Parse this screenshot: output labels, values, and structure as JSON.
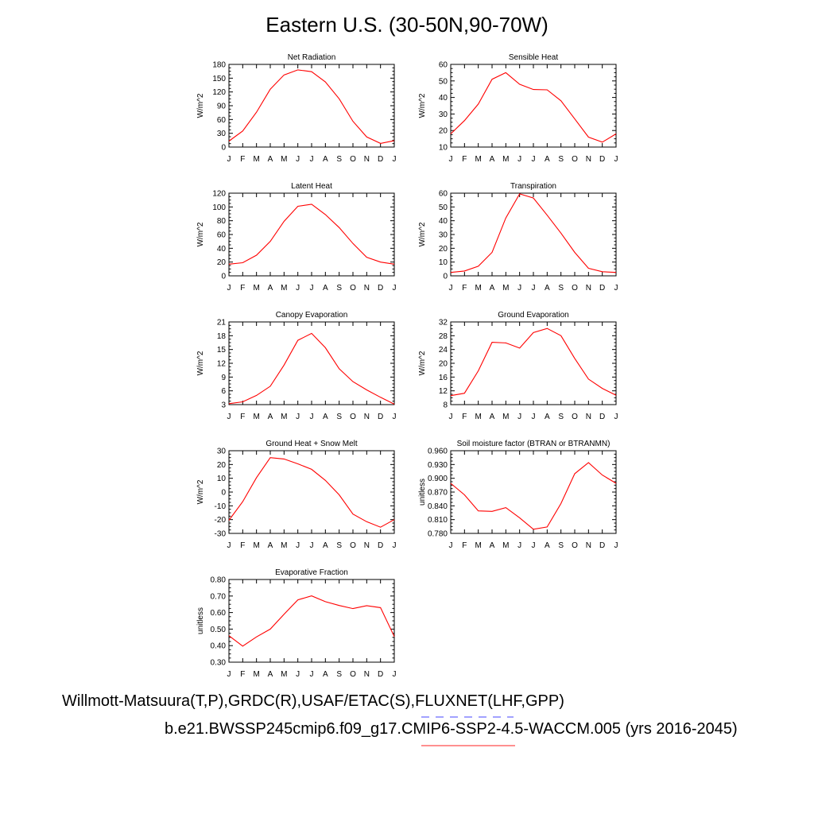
{
  "title": "Eastern U.S. (30-50N,90-70W)",
  "footer": {
    "obs_line": "Willmott-Matsuura(T,P),GRDC(R),USAF/ETAC(S),FLUXNET(LHF,GPP)",
    "model_line": "b.e21.BWSSP245cmip6.f09_g17.CMIP6-SSP2-4.5-WACCM.005 (yrs 2016-2045)",
    "obs_color": "#6b6bff",
    "model_color": "#ff6b6b"
  },
  "chart_data": [
    {
      "type": "line",
      "title": "Net Radiation",
      "ylabel": "W/m^2",
      "categories": [
        "J",
        "F",
        "M",
        "A",
        "M",
        "J",
        "J",
        "A",
        "S",
        "O",
        "N",
        "D",
        "J"
      ],
      "yticks": [
        "0",
        "30",
        "60",
        "90",
        "120",
        "150",
        "180"
      ],
      "ylim": [
        0,
        180
      ],
      "series": [
        {
          "color": "#ff0000",
          "values": [
            13,
            35,
            76,
            126,
            157,
            168,
            164,
            142,
            105,
            56,
            22,
            8,
            14
          ]
        }
      ]
    },
    {
      "type": "line",
      "title": "Sensible Heat",
      "ylabel": "W/m^2",
      "categories": [
        "J",
        "F",
        "M",
        "A",
        "M",
        "J",
        "J",
        "A",
        "S",
        "O",
        "N",
        "D",
        "J"
      ],
      "yticks": [
        "10",
        "20",
        "30",
        "40",
        "50",
        "60"
      ],
      "ylim": [
        10,
        60
      ],
      "series": [
        {
          "color": "#ff0000",
          "values": [
            18,
            26,
            36,
            51,
            55,
            48,
            44.8,
            44.6,
            38,
            27,
            16,
            13,
            18
          ]
        }
      ]
    },
    {
      "type": "line",
      "title": "Latent Heat",
      "ylabel": "W/m^2",
      "categories": [
        "J",
        "F",
        "M",
        "A",
        "M",
        "J",
        "J",
        "A",
        "S",
        "O",
        "N",
        "D",
        "J"
      ],
      "yticks": [
        "0",
        "20",
        "40",
        "60",
        "80",
        "100",
        "120"
      ],
      "ylim": [
        0,
        120
      ],
      "series": [
        {
          "color": "#ff0000",
          "values": [
            17,
            19,
            30,
            50,
            79,
            101,
            104,
            89,
            70,
            47,
            27,
            20,
            17
          ]
        }
      ]
    },
    {
      "type": "line",
      "title": "Transpiration",
      "ylabel": "W/m^2",
      "categories": [
        "J",
        "F",
        "M",
        "A",
        "M",
        "J",
        "J",
        "A",
        "S",
        "O",
        "N",
        "D",
        "J"
      ],
      "yticks": [
        "0",
        "10",
        "20",
        "30",
        "40",
        "50",
        "60"
      ],
      "ylim": [
        0,
        60
      ],
      "series": [
        {
          "color": "#ff0000",
          "values": [
            2.5,
            3.5,
            7,
            17,
            42,
            59.5,
            56.5,
            44,
            31,
            17,
            5.5,
            3,
            2.5
          ]
        }
      ]
    },
    {
      "type": "line",
      "title": "Canopy Evaporation",
      "ylabel": "W/m^2",
      "categories": [
        "J",
        "F",
        "M",
        "A",
        "M",
        "J",
        "J",
        "A",
        "S",
        "O",
        "N",
        "D",
        "J"
      ],
      "yticks": [
        "3",
        "6",
        "9",
        "12",
        "15",
        "18",
        "21"
      ],
      "ylim": [
        3,
        21
      ],
      "series": [
        {
          "color": "#ff0000",
          "values": [
            3.2,
            3.6,
            5,
            7,
            11.6,
            17,
            18.5,
            15.4,
            10.8,
            8,
            6.2,
            4.6,
            3.1
          ]
        }
      ]
    },
    {
      "type": "line",
      "title": "Ground Evaporation",
      "ylabel": "W/m^2",
      "categories": [
        "J",
        "F",
        "M",
        "A",
        "M",
        "J",
        "J",
        "A",
        "S",
        "O",
        "N",
        "D",
        "J"
      ],
      "yticks": [
        "8",
        "12",
        "16",
        "20",
        "24",
        "28",
        "32"
      ],
      "ylim": [
        8,
        32
      ],
      "series": [
        {
          "color": "#ff0000",
          "values": [
            10.6,
            11.3,
            17.8,
            26.1,
            25.9,
            24.4,
            28.9,
            30.1,
            28,
            21.4,
            15.4,
            12.7,
            10.7
          ]
        }
      ]
    },
    {
      "type": "line",
      "title": "Ground Heat + Snow Melt",
      "ylabel": "W/m^2",
      "categories": [
        "J",
        "F",
        "M",
        "A",
        "M",
        "J",
        "J",
        "A",
        "S",
        "O",
        "N",
        "D",
        "J"
      ],
      "yticks": [
        "-30",
        "-20",
        "-10",
        "0",
        "10",
        "20",
        "30"
      ],
      "ylim": [
        -30,
        30
      ],
      "series": [
        {
          "color": "#ff0000",
          "values": [
            -20.5,
            -7,
            10.5,
            25,
            24,
            20.5,
            16.5,
            8.5,
            -2,
            -16,
            -21.5,
            -25.5,
            -20
          ]
        }
      ]
    },
    {
      "type": "line",
      "title": "Soil moisture factor (BTRAN or BTRANMN)",
      "ylabel": "unitless",
      "categories": [
        "J",
        "F",
        "M",
        "A",
        "M",
        "J",
        "J",
        "A",
        "S",
        "O",
        "N",
        "D",
        "J"
      ],
      "yticks": [
        "0.780",
        "0.810",
        "0.840",
        "0.870",
        "0.900",
        "0.930",
        "0.960"
      ],
      "ylim": [
        0.78,
        0.96
      ],
      "series": [
        {
          "color": "#ff0000",
          "values": [
            0.889,
            0.864,
            0.829,
            0.828,
            0.836,
            0.814,
            0.789,
            0.794,
            0.845,
            0.91,
            0.934,
            0.907,
            0.889
          ]
        }
      ]
    },
    {
      "type": "line",
      "title": "Evaporative Fraction",
      "ylabel": "unitless",
      "categories": [
        "J",
        "F",
        "M",
        "A",
        "M",
        "J",
        "J",
        "A",
        "S",
        "O",
        "N",
        "D",
        "J"
      ],
      "yticks": [
        "0.30",
        "0.40",
        "0.50",
        "0.60",
        "0.70",
        "0.80"
      ],
      "ylim": [
        0.3,
        0.8
      ],
      "series": [
        {
          "color": "#ff0000",
          "values": [
            0.46,
            0.397,
            0.453,
            0.5,
            0.59,
            0.677,
            0.701,
            0.666,
            0.643,
            0.624,
            0.642,
            0.63,
            0.455
          ]
        }
      ]
    }
  ]
}
